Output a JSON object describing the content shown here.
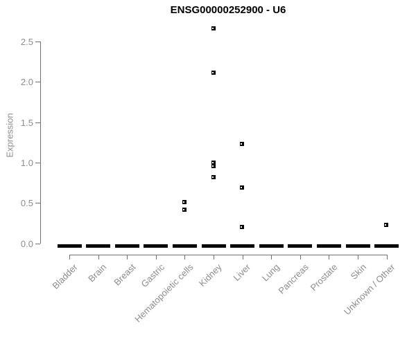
{
  "chart_data": {
    "type": "scatter",
    "title": "ENSG00000252900 - U6",
    "xlabel": "",
    "ylabel": "Expression",
    "categories": [
      "Bladder",
      "Brain",
      "Breast",
      "Gastric",
      "Hematopoietic cells",
      "Kidney",
      "Liver",
      "Lung",
      "Pancreas",
      "Prostate",
      "Skin",
      "Unknown / Other"
    ],
    "ytick_labels": [
      "0.0",
      "0.5",
      "1.0",
      "1.5",
      "2.0",
      "2.5"
    ],
    "ytick_values": [
      0,
      0.5,
      1.0,
      1.5,
      2.0,
      2.5
    ],
    "ylim": [
      0,
      2.75
    ],
    "grid": false,
    "legend": "none",
    "zero_bars": "every category shows a dense horizontal bar of overlapping data points at expression 0",
    "series": [
      {
        "name": "nonzero-points",
        "points": [
          {
            "category": "Hematopoietic cells",
            "y": 0.51
          },
          {
            "category": "Hematopoietic cells",
            "y": 0.42
          },
          {
            "category": "Kidney",
            "y": 2.66
          },
          {
            "category": "Kidney",
            "y": 2.11
          },
          {
            "category": "Kidney",
            "y": 1.0
          },
          {
            "category": "Kidney",
            "y": 0.96
          },
          {
            "category": "Kidney",
            "y": 0.82
          },
          {
            "category": "Liver",
            "y": 1.23
          },
          {
            "category": "Liver",
            "y": 0.69
          },
          {
            "category": "Liver",
            "y": 0.2
          },
          {
            "category": "Unknown / Other",
            "y": 0.23
          }
        ]
      }
    ],
    "colors": {
      "marker": "#000000",
      "axis_line": "#707070",
      "tick_text": "#8c8c8c",
      "title": "#000000",
      "background": "#ffffff"
    }
  }
}
